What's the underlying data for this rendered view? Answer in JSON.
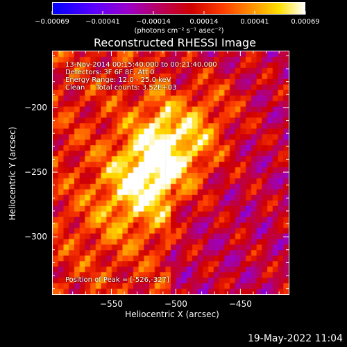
{
  "chart_data": {
    "type": "heatmap",
    "title": "Reconstructed RHESSI Image",
    "xlabel": "Heliocentric X (arcsec)",
    "ylabel": "Heliocentric Y (arcsec)",
    "x_ticks": [
      "−550",
      "−500",
      "−450"
    ],
    "x_tick_values": [
      -550,
      -500,
      -450
    ],
    "y_ticks": [
      "−200",
      "−250",
      "−300"
    ],
    "y_tick_values": [
      -200,
      -250,
      -300
    ],
    "xlim": [
      -596,
      -412
    ],
    "ylim": [
      -345,
      -156
    ],
    "colorbar": {
      "ticks": [
        "−0.00069",
        "−0.00041",
        "−0.00014",
        "0.00014",
        "0.00041",
        "0.00069"
      ],
      "range": [
        -0.00069,
        0.00069
      ],
      "units": "(photons cm⁻² s⁻¹ asec⁻²)",
      "colormap": "blue-purple-red-yellow-white"
    },
    "peak": {
      "x": -526,
      "y": -327
    },
    "annotations": {
      "time_range": "13-Nov-2014 00:15:40.000 to 00:21:40.000",
      "detectors": "Detectors: 3F 6F 8F, Att 0",
      "energy": "Energy Range: 12.0 - 25.0 keV",
      "method": "Clean     Total counts: 3.52E+03",
      "peak_text": "Position of Peak = [-526,-327]"
    }
  },
  "footer": {
    "date": "19-May-2022 11:04"
  }
}
